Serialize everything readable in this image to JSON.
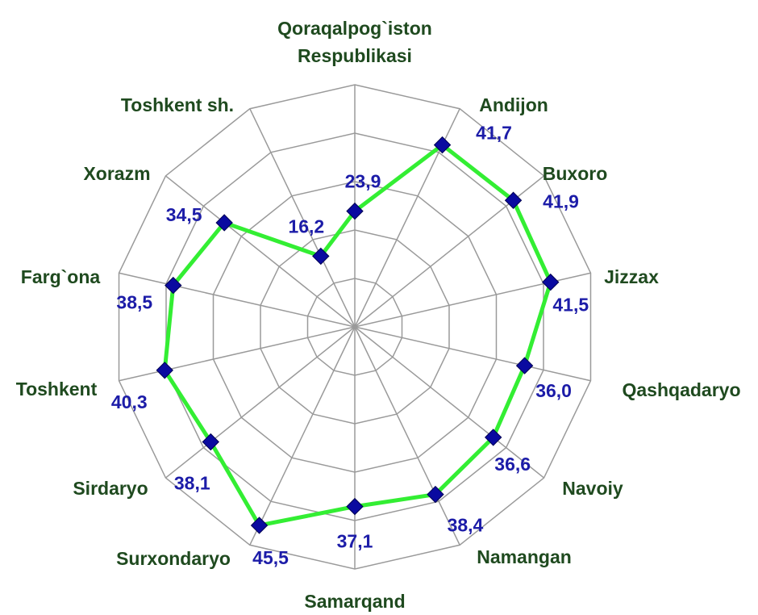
{
  "chart_data": {
    "type": "radar",
    "categories": [
      "Qoraqalpog`iston Respublikasi",
      "Andijon",
      "Buxoro",
      "Jizzax",
      "Qashqadaryo",
      "Navoiy",
      "Namangan",
      "Samarqand",
      "Surxondaryo",
      "Sirdaryo",
      "Toshkent",
      "Farg`ona",
      "Xorazm",
      "Toshkent sh."
    ],
    "values": [
      23.9,
      41.7,
      41.9,
      41.5,
      36.0,
      36.6,
      38.4,
      37.1,
      45.5,
      38.1,
      40.3,
      38.5,
      34.5,
      16.2
    ],
    "value_labels": [
      "23,9",
      "41,7",
      "41,9",
      "41,5",
      "36,0",
      "36,6",
      "38,4",
      "37,1",
      "45,5",
      "38,1",
      "40,3",
      "38,5",
      "34,5",
      "16,2"
    ],
    "ylim": [
      0,
      50
    ],
    "yticks": [
      0,
      10,
      20,
      30,
      40,
      50
    ],
    "grid": true,
    "color": "#33ee33",
    "marker_color": "#0a0aa0"
  }
}
